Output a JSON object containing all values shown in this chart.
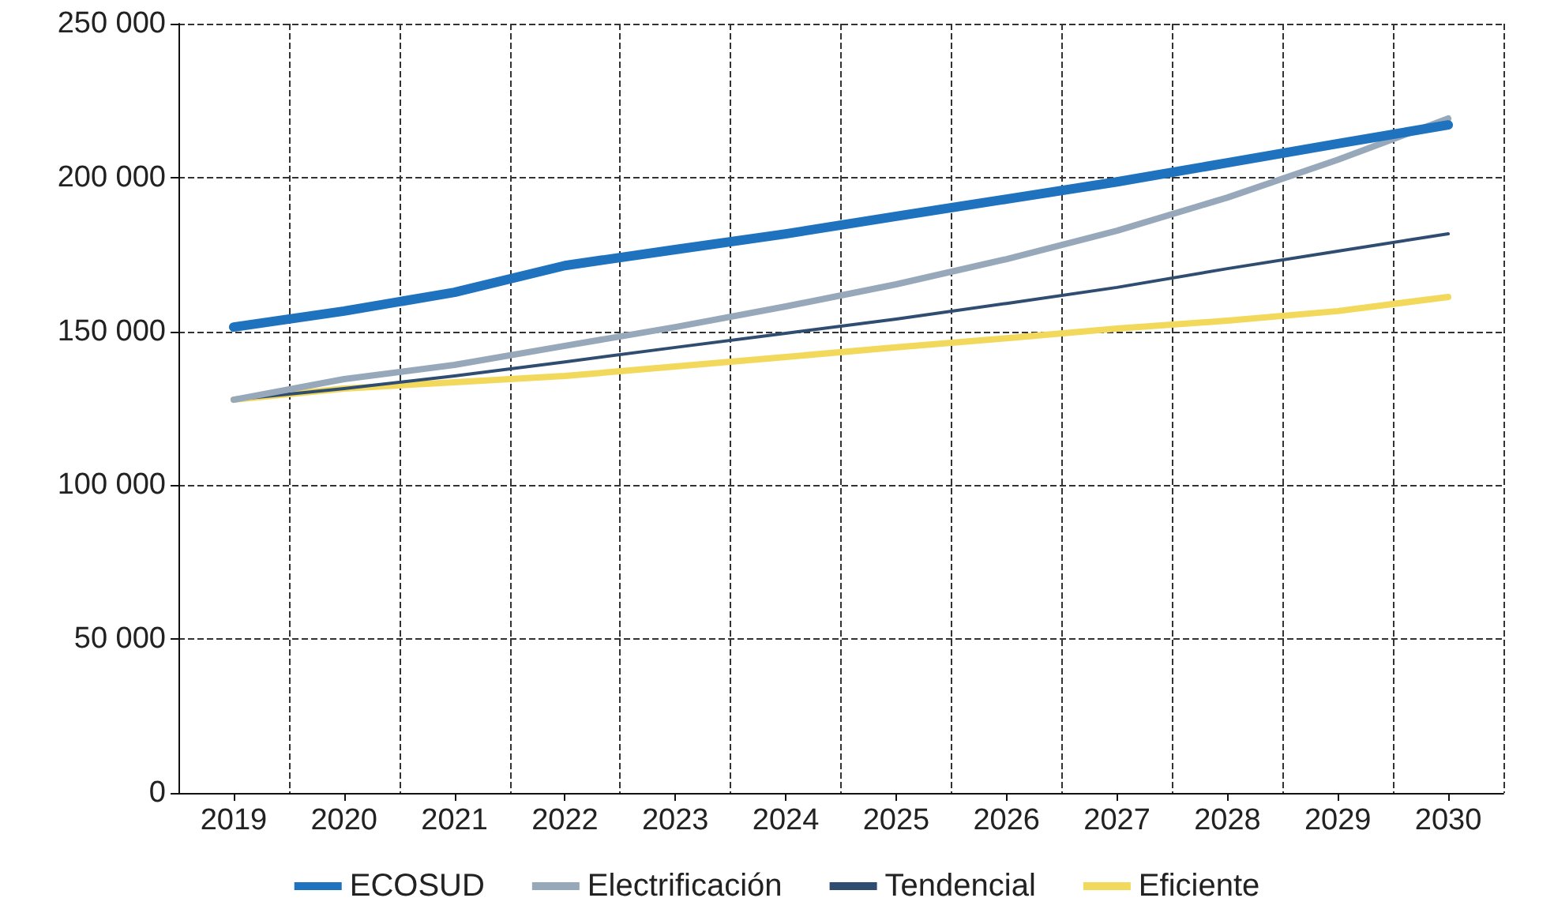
{
  "chart_data": {
    "type": "line",
    "categories": [
      "2019",
      "2020",
      "2021",
      "2022",
      "2023",
      "2024",
      "2025",
      "2026",
      "2027",
      "2028",
      "2029",
      "2030"
    ],
    "series": [
      {
        "name": "ECOSUD",
        "color": "#1f72be",
        "values": [
          151400,
          156600,
          162700,
          171400,
          176600,
          181700,
          187400,
          193000,
          198600,
          204800,
          211000,
          217100
        ]
      },
      {
        "name": "Electrificación",
        "color": "#97a8bb",
        "values": [
          127800,
          134500,
          139100,
          145300,
          151400,
          158100,
          165300,
          173500,
          182700,
          193500,
          205800,
          219200
        ]
      },
      {
        "name": "Tendencial",
        "color": "#2f4d70",
        "values": [
          127800,
          131400,
          135500,
          140100,
          144800,
          149400,
          154000,
          159100,
          164300,
          170400,
          176100,
          181700
        ]
      },
      {
        "name": "Eficiente",
        "color": "#f2d95c",
        "values": [
          127800,
          131400,
          133500,
          135500,
          138600,
          141700,
          144800,
          147800,
          150900,
          153500,
          156600,
          161200
        ]
      }
    ],
    "ylim": [
      0,
      250000
    ],
    "yticks": [
      {
        "value": 0,
        "label": "0"
      },
      {
        "value": 50000,
        "label": "50 000"
      },
      {
        "value": 100000,
        "label": "100 000"
      },
      {
        "value": 150000,
        "label": "150 000"
      },
      {
        "value": 200000,
        "label": "200 000"
      },
      {
        "value": 250000,
        "label": "250 000"
      }
    ],
    "grid": true,
    "legend": "bottom",
    "marker": "none",
    "line_style": "solid"
  }
}
